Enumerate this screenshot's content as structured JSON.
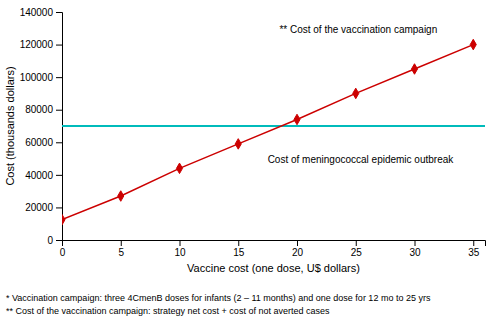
{
  "chart_data": {
    "type": "line",
    "x": [
      0,
      5,
      10,
      15,
      20,
      25,
      30,
      35
    ],
    "values": [
      12500,
      27000,
      44000,
      59000,
      74000,
      90000,
      105000,
      120000
    ],
    "color": "#CC0000",
    "marker": "diamond",
    "reference_line": {
      "y": 70000,
      "color": "#00BBBB"
    },
    "xlim": [
      0,
      36
    ],
    "ylim": [
      0,
      140000
    ],
    "xticks": [
      0,
      5,
      10,
      15,
      20,
      25,
      30,
      35
    ],
    "yticks": [
      0,
      20000,
      40000,
      60000,
      80000,
      100000,
      120000,
      140000
    ],
    "x_label": "Vaccine cost (one dose, U$ dollars)",
    "y_label": "Cost (thousands dollars)",
    "annotations": [
      {
        "text": "** Cost of the vaccination campaign",
        "x": 18.5,
        "y": 127000
      },
      {
        "text": "Cost of meningococcal epidemic outbreak",
        "x": 17.5,
        "y": 52000
      }
    ],
    "footnotes": [
      "* Vaccination campaign:  three 4CmenB doses for infants (2 – 11 months) and one dose for 12 mo to 25 yrs",
      "** Cost of the vaccination campaign: strategy  net cost + cost of not averted cases"
    ],
    "grid": false
  }
}
